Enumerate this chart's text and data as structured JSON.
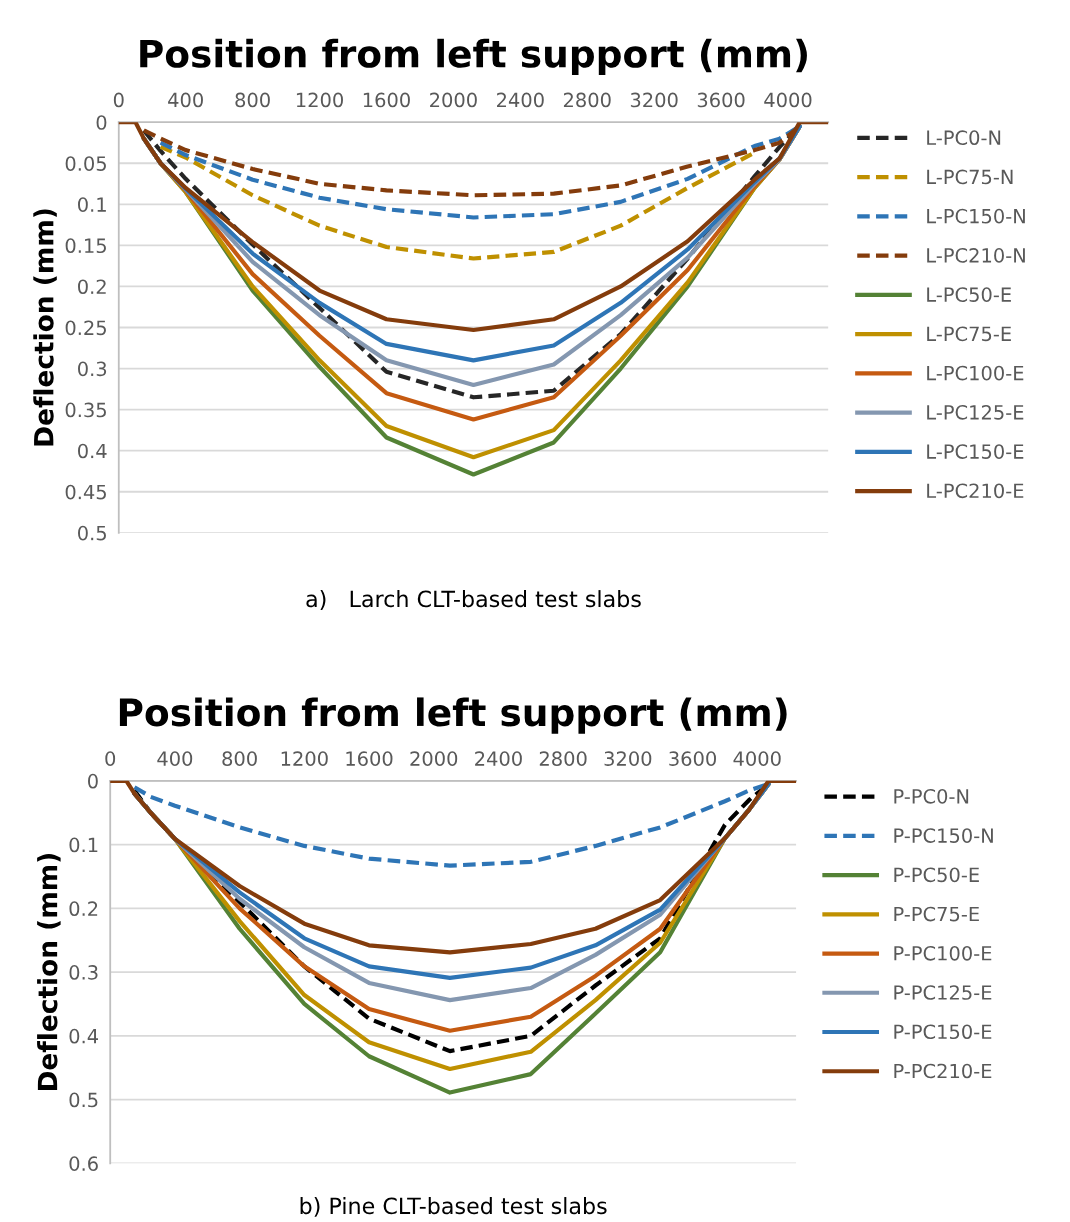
{
  "chart_data": [
    {
      "type": "line",
      "xlabel": "Position from left support (mm)",
      "ylabel": "Deflection (mm)",
      "annotations": [
        "a)   Larch CLT-based test slabs"
      ],
      "x": [
        0,
        100,
        150,
        250,
        400,
        800,
        1200,
        1600,
        2120,
        2600,
        3000,
        3400,
        3800,
        3950,
        4070,
        4130,
        4240
      ],
      "xlim": [
        0,
        4240
      ],
      "xticks": [
        0,
        400,
        800,
        1200,
        1600,
        2000,
        2400,
        2800,
        3200,
        3600,
        4000
      ],
      "ylim": [
        0.5,
        0
      ],
      "yticks": [
        0,
        0.05,
        0.1,
        0.15,
        0.2,
        0.25,
        0.3,
        0.35,
        0.4,
        0.45,
        0.5
      ],
      "grid": "y",
      "legend": "right",
      "line_style": "solid",
      "marker": "none",
      "series": [
        {
          "name": "L-PC0-N",
          "color": "#262626",
          "line_style": "dashed",
          "values": [
            null,
            null,
            0.01,
            0.035,
            0.069,
            0.149,
            0.226,
            0.304,
            0.335,
            0.327,
            0.258,
            0.166,
            0.066,
            0.03,
            0.005,
            null,
            null
          ]
        },
        {
          "name": "L-PC75-N",
          "color": "#bf9000",
          "line_style": "dashed",
          "values": [
            null,
            null,
            null,
            0.03,
            0.043,
            0.089,
            0.126,
            0.152,
            0.166,
            0.158,
            0.126,
            0.08,
            0.037,
            null,
            null,
            null,
            null
          ]
        },
        {
          "name": "L-PC150-N",
          "color": "#2e75b6",
          "line_style": "dashed",
          "values": [
            null,
            null,
            null,
            0.025,
            0.04,
            0.07,
            0.092,
            0.106,
            0.116,
            0.112,
            0.097,
            0.069,
            0.029,
            0.02,
            0.005,
            null,
            null
          ]
        },
        {
          "name": "L-PC210-N",
          "color": "#843c0c",
          "line_style": "dashed",
          "values": [
            null,
            null,
            0.01,
            0.02,
            0.034,
            0.057,
            0.075,
            0.083,
            0.089,
            0.087,
            0.077,
            0.054,
            0.034,
            0.025,
            0.005,
            null,
            null
          ]
        },
        {
          "name": "L-PC50-E",
          "color": "#548235",
          "values": [
            null,
            null,
            0.02,
            0.05,
            0.085,
            0.205,
            0.298,
            0.384,
            0.429,
            0.39,
            0.3,
            0.2,
            0.08,
            0.045,
            0.005,
            null,
            null
          ]
        },
        {
          "name": "L-PC75-E",
          "color": "#bf9000",
          "values": [
            null,
            null,
            0.02,
            0.05,
            0.085,
            0.2,
            0.29,
            0.37,
            0.408,
            0.375,
            0.29,
            0.195,
            0.08,
            0.045,
            0.005,
            null,
            null
          ]
        },
        {
          "name": "L-PC100-E",
          "color": "#c55a11",
          "values": [
            null,
            null,
            0.02,
            0.05,
            0.083,
            0.185,
            0.26,
            0.33,
            0.362,
            0.335,
            0.26,
            0.18,
            0.078,
            0.045,
            0.005,
            null,
            null
          ]
        },
        {
          "name": "L-PC125-E",
          "color": "#8497b0",
          "values": [
            null,
            null,
            0.02,
            0.05,
            0.082,
            0.17,
            0.235,
            0.29,
            0.32,
            0.295,
            0.235,
            0.165,
            0.075,
            0.045,
            0.005,
            null,
            null
          ]
        },
        {
          "name": "L-PC150-E",
          "color": "#2e75b6",
          "values": [
            null,
            null,
            0.02,
            0.05,
            0.081,
            0.16,
            0.22,
            0.27,
            0.29,
            0.272,
            0.22,
            0.155,
            0.073,
            0.044,
            0.005,
            null,
            null
          ]
        },
        {
          "name": "L-PC210-E",
          "color": "#843c0c",
          "values": [
            0,
            0,
            0.02,
            0.05,
            0.08,
            0.146,
            0.205,
            0.24,
            0.253,
            0.24,
            0.2,
            0.145,
            0.07,
            0.044,
            0,
            0,
            0
          ]
        }
      ]
    },
    {
      "type": "line",
      "xlabel": "Position from left support (mm)",
      "ylabel": "Deflection (mm)",
      "annotations": [
        "b) Pine CLT-based test slabs"
      ],
      "x": [
        0,
        100,
        150,
        250,
        400,
        800,
        1200,
        1600,
        2100,
        2600,
        3000,
        3400,
        3800,
        3950,
        4070,
        4130,
        4240
      ],
      "xlim": [
        0,
        4240
      ],
      "xticks": [
        0,
        400,
        800,
        1200,
        1600,
        2000,
        2400,
        2800,
        3200,
        3600,
        4000
      ],
      "ylim": [
        0.6,
        0
      ],
      "yticks": [
        0,
        0.1,
        0.2,
        0.3,
        0.4,
        0.5,
        0.6
      ],
      "grid": "y",
      "legend": "right",
      "line_style": "solid",
      "marker": "none",
      "series": [
        {
          "name": "P-PC0-N",
          "color": "#000000",
          "line_style": "dashed",
          "values": [
            null,
            null,
            0.015,
            0.05,
            0.091,
            0.19,
            0.291,
            0.373,
            0.424,
            0.4,
            0.321,
            0.247,
            0.069,
            0.03,
            0.005,
            null,
            null
          ]
        },
        {
          "name": "P-PC150-N",
          "color": "#2e75b6",
          "line_style": "dashed",
          "values": [
            null,
            null,
            0.01,
            0.025,
            0.039,
            0.073,
            0.102,
            0.122,
            0.133,
            0.127,
            0.102,
            0.073,
            0.032,
            0.015,
            0.005,
            null,
            null
          ]
        },
        {
          "name": "P-PC50-E",
          "color": "#548235",
          "values": [
            null,
            null,
            0.02,
            0.05,
            0.091,
            0.232,
            0.35,
            0.432,
            0.489,
            0.46,
            0.365,
            0.269,
            0.09,
            0.045,
            0.005,
            null,
            null
          ]
        },
        {
          "name": "P-PC75-E",
          "color": "#bf9000",
          "values": [
            null,
            null,
            0.02,
            0.05,
            0.091,
            0.22,
            0.336,
            0.41,
            0.452,
            0.425,
            0.344,
            0.254,
            0.09,
            0.045,
            0.005,
            null,
            null
          ]
        },
        {
          "name": "P-PC100-E",
          "color": "#c55a11",
          "values": [
            null,
            null,
            0.02,
            0.05,
            0.091,
            0.2,
            0.291,
            0.358,
            0.392,
            0.37,
            0.306,
            0.232,
            0.09,
            0.045,
            0.005,
            null,
            null
          ]
        },
        {
          "name": "P-PC125-E",
          "color": "#8497b0",
          "values": [
            null,
            null,
            0.02,
            0.05,
            0.091,
            0.185,
            0.261,
            0.317,
            0.344,
            0.325,
            0.273,
            0.21,
            0.09,
            0.045,
            0.005,
            null,
            null
          ]
        },
        {
          "name": "P-PC150-E",
          "color": "#2e75b6",
          "values": [
            null,
            null,
            0.02,
            0.05,
            0.091,
            0.175,
            0.247,
            0.291,
            0.309,
            0.293,
            0.258,
            0.202,
            0.09,
            0.045,
            0.005,
            null,
            null
          ]
        },
        {
          "name": "P-PC210-E",
          "color": "#843c0c",
          "values": [
            0,
            0,
            0.02,
            0.05,
            0.091,
            0.165,
            0.224,
            0.258,
            0.269,
            0.256,
            0.232,
            0.187,
            0.09,
            0.045,
            0,
            0,
            0
          ]
        }
      ]
    }
  ]
}
